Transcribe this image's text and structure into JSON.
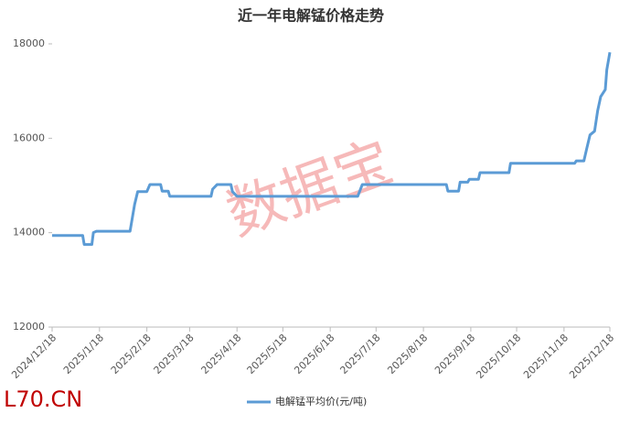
{
  "chart_data": {
    "type": "line",
    "title": "近一年电解锰价格走势",
    "watermark": "数据宝",
    "source": "L70.CN",
    "x": [
      "2024/12/18",
      "2025/1/7",
      "2025/1/8",
      "2025/1/13",
      "2025/1/14",
      "2025/1/16",
      "2025/2/7",
      "2025/2/10",
      "2025/2/12",
      "2025/2/18",
      "2025/2/20",
      "2025/2/27",
      "2025/2/28",
      "2025/3/4",
      "2025/3/5",
      "2025/4/1",
      "2025/4/2",
      "2025/4/5",
      "2025/4/14",
      "2025/4/15",
      "2025/4/18",
      "2025/7/6",
      "2025/7/9",
      "2025/9/2",
      "2025/9/3",
      "2025/9/10",
      "2025/9/11",
      "2025/9/16",
      "2025/9/17",
      "2025/9/23",
      "2025/9/24",
      "2025/10/13",
      "2025/10/14",
      "2025/11/25",
      "2025/11/26",
      "2025/12/1",
      "2025/12/3",
      "2025/12/5",
      "2025/12/8",
      "2025/12/10",
      "2025/12/12",
      "2025/12/15",
      "2025/12/16",
      "2025/12/18"
    ],
    "series": [
      {
        "name": "电解锰平均价(元/吨)",
        "color": "#5b9bd5",
        "values": [
          13940,
          13940,
          13750,
          13750,
          14000,
          14030,
          14030,
          14600,
          14870,
          14870,
          15020,
          15020,
          14880,
          14880,
          14770,
          14770,
          14920,
          15020,
          15020,
          14870,
          14770,
          14770,
          15020,
          15020,
          14880,
          14880,
          15070,
          15070,
          15130,
          15130,
          15270,
          15270,
          15470,
          15470,
          15520,
          15520,
          15800,
          16070,
          16150,
          16580,
          16880,
          17030,
          17450,
          17820
        ]
      }
    ],
    "xlim": [
      "2024/12/18",
      "2025/12/18"
    ],
    "xticks": [
      "2024/12/18",
      "2025/1/18",
      "2025/2/18",
      "2025/3/18",
      "2025/4/18",
      "2025/5/18",
      "2025/6/18",
      "2025/7/18",
      "2025/8/18",
      "2025/9/18",
      "2025/10/18",
      "2025/11/18",
      "2025/12/18"
    ],
    "ylim": [
      12000,
      18000
    ],
    "yticks": [
      12000,
      14000,
      16000,
      18000
    ],
    "grid": false
  }
}
